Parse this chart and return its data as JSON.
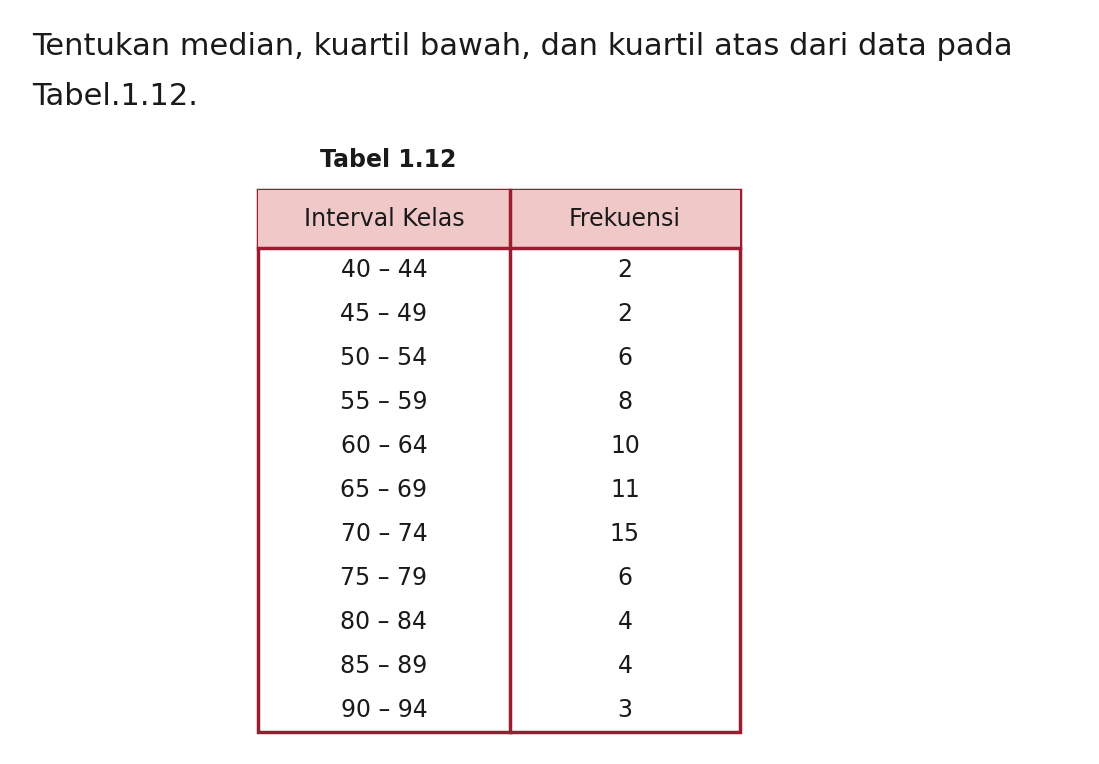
{
  "title_line1": "Tentukan median, kuartil bawah, dan kuartil atas dari data pada",
  "title_line2": "Tabel.1.12.",
  "table_title": "Tabel 1.12",
  "col_headers": [
    "Interval Kelas",
    "Frekuensi"
  ],
  "intervals": [
    "40 – 44",
    "45 – 49",
    "50 – 54",
    "55 – 59",
    "60 – 64",
    "65 – 69",
    "70 – 74",
    "75 – 79",
    "80 – 84",
    "85 – 89",
    "90 – 94"
  ],
  "frequencies": [
    "2",
    "2",
    "6",
    "8",
    "10",
    "11",
    "15",
    "6",
    "4",
    "4",
    "3"
  ],
  "header_bg_color": "#f0c8c8",
  "border_color": "#9b1b30",
  "text_color": "#1a1a1a",
  "background_color": "#ffffff",
  "title_fontsize": 22,
  "table_title_fontsize": 17,
  "header_fontsize": 17,
  "data_fontsize": 17
}
